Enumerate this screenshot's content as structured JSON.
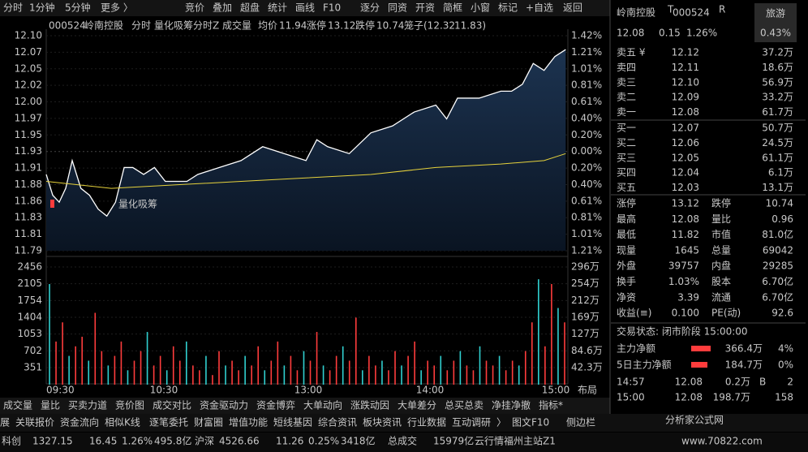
{
  "top_tabs": [
    "分时",
    "1分钟",
    "5分钟",
    "更多 〉"
  ],
  "top_buttons": [
    "竞价",
    "叠加",
    "超盘",
    "统计",
    "画线",
    "F10",
    "逐分",
    "同资",
    "开资",
    "简框",
    "小窗",
    "标记",
    "+自选",
    "返回"
  ],
  "header": {
    "code": "000524",
    "name": "岭南控股",
    "mode": "分时",
    "indicator": "量化吸筹分时Z",
    "volume": "成交量",
    "avg_label": "均价",
    "avg": "11.94",
    "up_label": "涨停",
    "up": "13.12",
    "down_label": "跌停",
    "down": "10.74",
    "cage_label": "笼子",
    "cage_high": "(12.32",
    "cage_low": "11.83)"
  },
  "price_chart": {
    "ylim": [
      11.79,
      12.1
    ],
    "price_labels": [
      "12.10",
      "12.07",
      "12.05",
      "12.02",
      "12.00",
      "11.97",
      "11.95",
      "11.93",
      "11.91",
      "11.88",
      "11.86",
      "11.83",
      "11.81",
      "11.79"
    ],
    "pct_labels": [
      "1.42%",
      "1.21%",
      "1.01%",
      "0.81%",
      "0.61%",
      "0.40%",
      "0.20%",
      "0.00%",
      "0.20%",
      "0.40%",
      "0.61%",
      "0.81%",
      "1.01%",
      "1.21%"
    ],
    "annotation": "量化吸筹",
    "minutes": [
      0,
      3,
      6,
      9,
      12,
      16,
      20,
      24,
      28,
      32,
      36,
      40,
      45,
      50,
      55,
      60,
      65,
      70,
      80,
      90,
      100,
      110,
      120,
      125,
      130,
      140,
      150,
      160,
      170,
      180,
      185,
      190,
      200,
      210,
      215,
      220,
      225,
      230,
      235,
      240
    ],
    "price": [
      11.9,
      11.87,
      11.86,
      11.88,
      11.92,
      11.88,
      11.87,
      11.85,
      11.84,
      11.86,
      11.91,
      11.91,
      11.9,
      11.91,
      11.89,
      11.89,
      11.89,
      11.9,
      11.91,
      11.92,
      11.94,
      11.93,
      11.92,
      11.95,
      11.94,
      11.93,
      11.96,
      11.97,
      11.99,
      12.0,
      11.98,
      12.01,
      12.01,
      12.02,
      12.02,
      12.03,
      12.06,
      12.05,
      12.07,
      12.08
    ],
    "avg_minutes": [
      0,
      30,
      60,
      90,
      120,
      150,
      180,
      210,
      230,
      240
    ],
    "avg_price": [
      11.89,
      11.88,
      11.885,
      11.89,
      11.895,
      11.9,
      11.91,
      11.915,
      11.92,
      11.93
    ]
  },
  "volume_chart": {
    "ylim": [
      0,
      2456
    ],
    "labels": [
      "2456",
      "2105",
      "1754",
      "1404",
      "1053",
      "702",
      "351"
    ],
    "right_labels": [
      "296万",
      "254万",
      "212万",
      "169万",
      "127万",
      "84.6万",
      "42.3万"
    ],
    "values": [
      2100,
      900,
      1300,
      600,
      800,
      1000,
      500,
      1500,
      700,
      400,
      600,
      900,
      300,
      500,
      700,
      1100,
      400,
      600,
      300,
      800,
      500,
      900,
      400,
      300,
      600,
      200,
      700,
      400,
      500,
      300,
      600,
      400,
      800,
      300,
      500,
      900,
      400,
      600,
      300,
      700,
      500,
      1100,
      400,
      300,
      600,
      800,
      500,
      1400,
      300,
      600,
      400,
      500,
      300,
      700,
      400,
      600,
      900,
      300,
      500,
      400,
      600,
      300,
      500,
      700,
      400,
      300,
      800,
      500,
      400,
      600,
      300,
      500,
      400,
      700,
      1300,
      2200,
      800,
      2100,
      1600,
      1300
    ]
  },
  "time_labels": [
    "09:30",
    "10:30",
    "13:00",
    "14:00",
    "15:00"
  ],
  "layout_label": "布局",
  "quote": {
    "name": "岭南控股",
    "tag_t": "T",
    "code": "000524",
    "tag_r": "R",
    "sector": "旅游",
    "price": "12.08",
    "change": "0.15",
    "pct": "1.26%",
    "sector_pct": "0.43%"
  },
  "asks": [
    [
      "卖五 ¥",
      "12.12",
      "37.2万"
    ],
    [
      "卖四",
      "12.11",
      "18.6万"
    ],
    [
      "卖三",
      "12.10",
      "56.9万"
    ],
    [
      "卖二",
      "12.09",
      "33.2万"
    ],
    [
      "卖一",
      "12.08",
      "61.7万"
    ]
  ],
  "bids": [
    [
      "买一",
      "12.07",
      "50.7万"
    ],
    [
      "买二",
      "12.06",
      "24.5万"
    ],
    [
      "买三",
      "12.05",
      "61.1万"
    ],
    [
      "买四",
      "12.04",
      "6.1万"
    ],
    [
      "买五",
      "12.03",
      "13.1万"
    ]
  ],
  "stats": [
    [
      "涨停",
      "13.12",
      "跌停",
      "10.74"
    ],
    [
      "最高",
      "12.08",
      "量比",
      "0.96"
    ],
    [
      "最低",
      "11.82",
      "市值",
      "81.0亿"
    ],
    [
      "现量",
      "1645",
      "总量",
      "69042"
    ],
    [
      "外盘",
      "39757",
      "内盘",
      "29285"
    ],
    [
      "换手",
      "1.03%",
      "股本",
      "6.70亿"
    ],
    [
      "净资",
      "3.39",
      "流通",
      "6.70亿"
    ],
    [
      "收益(≡)",
      "0.100",
      "PE(动)",
      "92.6"
    ]
  ],
  "status": "交易状态: 闭市阶段 15:00:00",
  "funds": [
    [
      "主力净额",
      "366.4万",
      "4%"
    ],
    [
      "5日主力净额",
      "184.7万",
      "0%"
    ]
  ],
  "trades": [
    [
      "14:57",
      "12.08",
      "0.2万",
      "B",
      "2"
    ],
    [
      "15:00",
      "12.08",
      "198.7万",
      "158"
    ]
  ],
  "bottom_tabs": [
    "成交量",
    "量比",
    "买卖力道",
    "竞价图",
    "成交对比",
    "资金驱动力",
    "资金博弈",
    "大单动向",
    "涨跌动因",
    "大单差分",
    "总买总卖",
    "净挂净撤",
    "指标*"
  ],
  "bottom_tabs2": [
    "展",
    "关联报价",
    "资金流向",
    "相似K线",
    "逐笔委托",
    "财富圈",
    "增值功能",
    "短线基因",
    "综合资讯",
    "板块资讯",
    "行业数据",
    "互动调研",
    "〉",
    "图文F10",
    "侧边栏"
  ],
  "status_bar": [
    "科创",
    "1327.15",
    "16.45",
    "1.26%",
    "495.8亿",
    "沪深",
    "4526.66",
    "11.26",
    "0.25%",
    "3418亿",
    "总成交",
    "15979亿",
    "云行情福州主站Z1"
  ],
  "watermark": "分析家公式网",
  "watermark_url": "www.70822.com"
}
